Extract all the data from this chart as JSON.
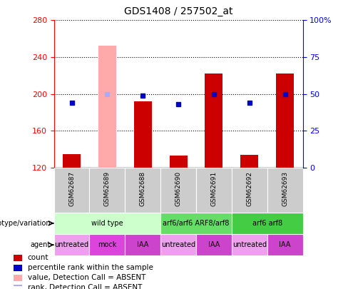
{
  "title": "GDS1408 / 257502_at",
  "samples": [
    "GSM62687",
    "GSM62689",
    "GSM62688",
    "GSM62690",
    "GSM62691",
    "GSM62692",
    "GSM62693"
  ],
  "count_values": [
    135,
    null,
    192,
    133,
    222,
    134,
    222
  ],
  "count_absent_values": [
    null,
    252,
    null,
    null,
    null,
    null,
    null
  ],
  "percentile_values": [
    44,
    null,
    49,
    43,
    50,
    44,
    50
  ],
  "percentile_absent_values": [
    null,
    50,
    null,
    null,
    null,
    null,
    null
  ],
  "ylim_left": [
    120,
    280
  ],
  "ylim_right": [
    0,
    100
  ],
  "yticks_left": [
    120,
    160,
    200,
    240,
    280
  ],
  "yticks_right": [
    0,
    25,
    50,
    75,
    100
  ],
  "bar_color_red": "#cc0000",
  "bar_color_pink": "#ffaaaa",
  "dot_color_blue": "#0000cc",
  "dot_color_lightblue": "#aaaaff",
  "genotype_groups": [
    {
      "label": "wild type",
      "span": [
        0,
        3
      ],
      "color": "#ccffcc"
    },
    {
      "label": "arf6/arf6 ARF8/arf8",
      "span": [
        3,
        5
      ],
      "color": "#66dd66"
    },
    {
      "label": "arf6 arf8",
      "span": [
        5,
        7
      ],
      "color": "#44cc44"
    }
  ],
  "agent_groups": [
    {
      "label": "untreated",
      "span": [
        0,
        1
      ],
      "color": "#eea0ee"
    },
    {
      "label": "mock",
      "span": [
        1,
        2
      ],
      "color": "#dd44dd"
    },
    {
      "label": "IAA",
      "span": [
        2,
        3
      ],
      "color": "#cc44cc"
    },
    {
      "label": "untreated",
      "span": [
        3,
        4
      ],
      "color": "#eea0ee"
    },
    {
      "label": "IAA",
      "span": [
        4,
        5
      ],
      "color": "#cc44cc"
    },
    {
      "label": "untreated",
      "span": [
        5,
        6
      ],
      "color": "#eea0ee"
    },
    {
      "label": "IAA",
      "span": [
        6,
        7
      ],
      "color": "#cc44cc"
    }
  ],
  "legend_items": [
    {
      "label": "count",
      "color": "#cc0000"
    },
    {
      "label": "percentile rank within the sample",
      "color": "#0000cc"
    },
    {
      "label": "value, Detection Call = ABSENT",
      "color": "#ffaaaa"
    },
    {
      "label": "rank, Detection Call = ABSENT",
      "color": "#aaaaff"
    }
  ],
  "fig_width": 4.88,
  "fig_height": 4.05,
  "dpi": 100
}
